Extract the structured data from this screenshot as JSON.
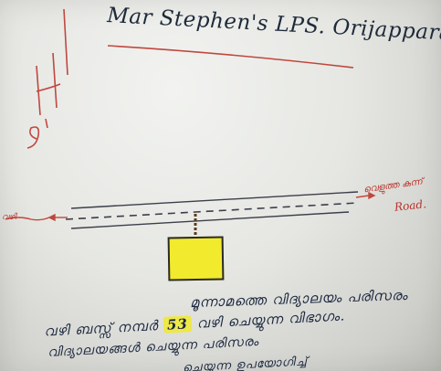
{
  "heading": {
    "school_name": "Mar Stephen's LPS. Orijappara."
  },
  "map": {
    "road_label_right_script": "വെളുത്ത കുന്ന്",
    "road_label_right": "Road.",
    "road_label_left_script": "വഴി"
  },
  "note": {
    "line_1": "മൂന്നാമത്തെ വിദ്യാലയം പരിസരം",
    "line_2_start": "വഴി ബസ്സ് നമ്പർ",
    "route_number": "53",
    "line_2_end": "വഴി ചെയ്യുന്ന വിഭാഗം.",
    "line_3": "വിദ്യാലയങ്ങൾ ചെയ്യുന്ന പരിസരം",
    "line_4": "ചെയ്യുന്ന ഉപയോഗിച്ച്"
  },
  "colors": {
    "ink_blue": "#1e2a3a",
    "ink_red": "#b8322a",
    "highlight_yellow": "#f2ea2c"
  }
}
